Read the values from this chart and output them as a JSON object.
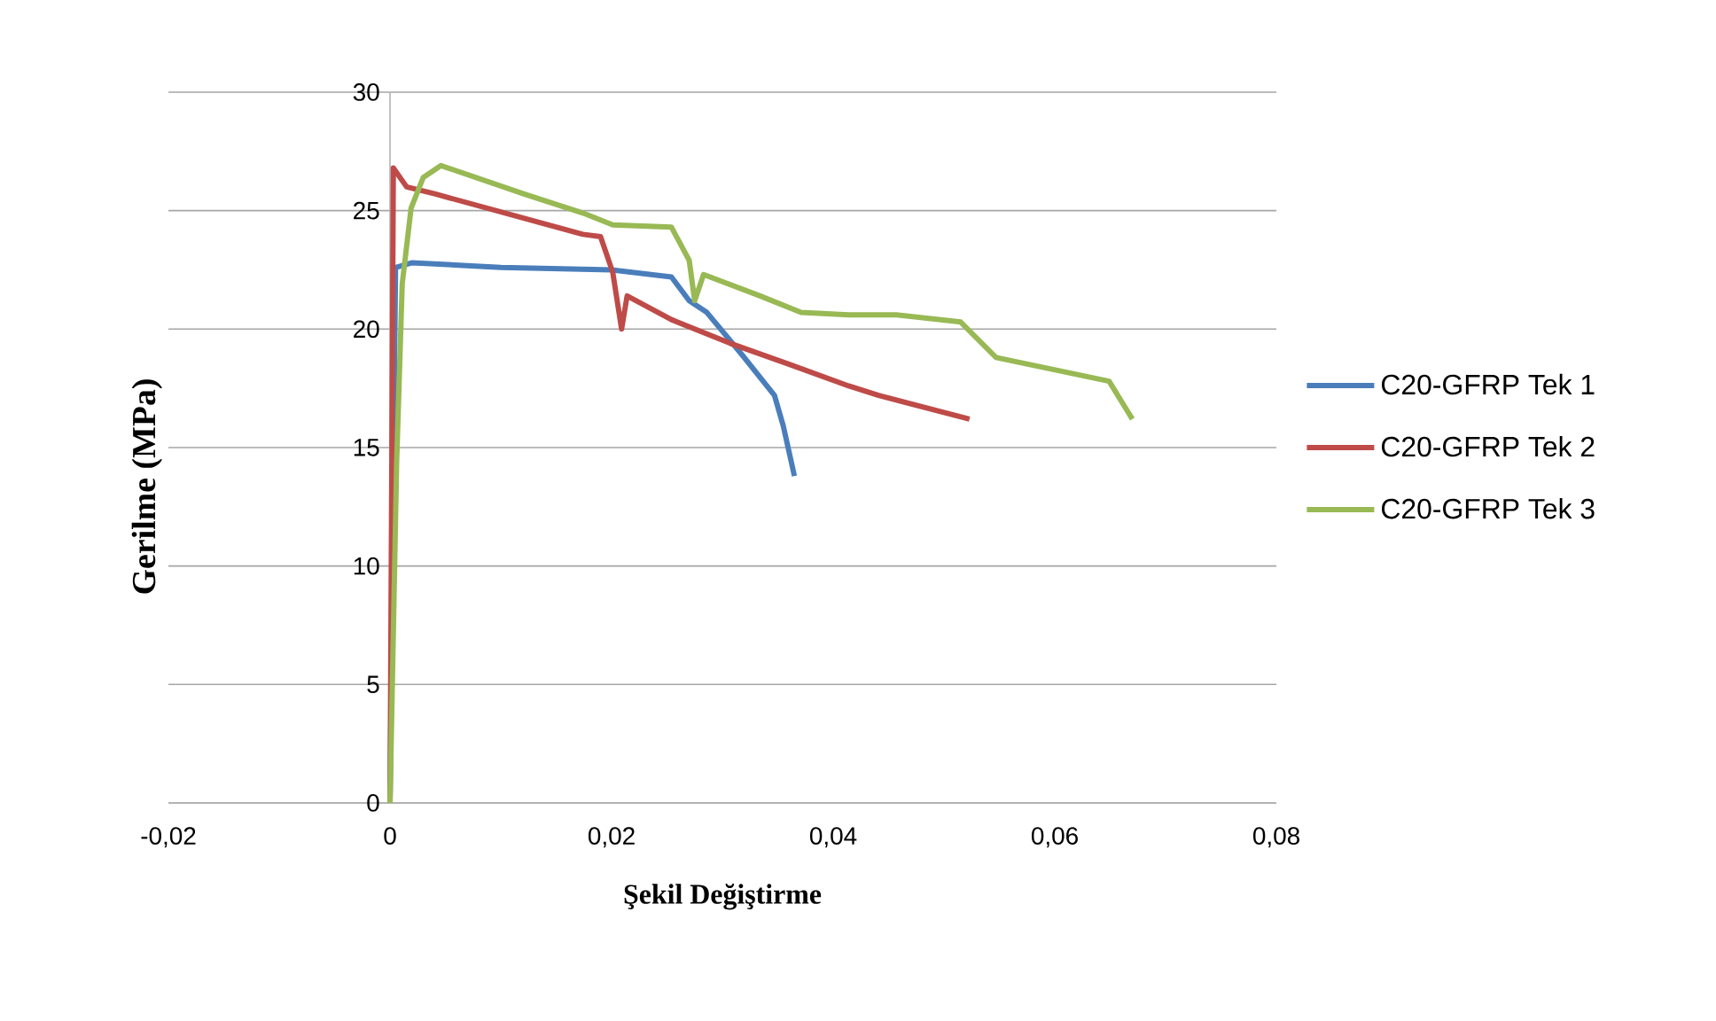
{
  "chart_data": {
    "type": "line",
    "xlabel": "Şekil Değiştirme",
    "ylabel": "Gerilme (MPa)",
    "xlim": [
      -0.02,
      0.08
    ],
    "ylim": [
      0,
      30
    ],
    "xticks": [
      {
        "value": -0.02,
        "label": "-0,02"
      },
      {
        "value": 0,
        "label": "0"
      },
      {
        "value": 0.02,
        "label": "0,02"
      },
      {
        "value": 0.04,
        "label": "0,04"
      },
      {
        "value": 0.06,
        "label": "0,06"
      },
      {
        "value": 0.08,
        "label": "0,08"
      }
    ],
    "yticks": [
      0,
      5,
      10,
      15,
      20,
      25,
      30
    ],
    "grid": "y",
    "legend": "right",
    "marker": "none",
    "line_style": "solid",
    "series": [
      {
        "name": "C20-GFRP Tek 1",
        "color": "#4a7ebb",
        "x": [
          0,
          0.0005,
          0.002,
          0.01,
          0.02,
          0.0254,
          0.027,
          0.0286,
          0.0318,
          0.0347,
          0.0355,
          0.0365
        ],
        "values": [
          0,
          22.6,
          22.8,
          22.6,
          22.5,
          22.2,
          21.2,
          20.7,
          18.9,
          17.2,
          15.9,
          13.8
        ]
      },
      {
        "name": "C20-GFRP Tek 2",
        "color": "#be4b48",
        "x": [
          0,
          0.0003,
          0.0015,
          0.0041,
          0.0174,
          0.019,
          0.0201,
          0.0209,
          0.0214,
          0.0254,
          0.0307,
          0.0361,
          0.0414,
          0.0441,
          0.0523
        ],
        "values": [
          0,
          26.8,
          26.0,
          25.7,
          24.0,
          23.9,
          22.4,
          20.0,
          21.4,
          20.4,
          19.4,
          18.5,
          17.6,
          17.2,
          16.2
        ]
      },
      {
        "name": "C20-GFRP Tek 3",
        "color": "#98b954",
        "x": [
          0,
          0.0006,
          0.0011,
          0.0019,
          0.003,
          0.0046,
          0.0121,
          0.0174,
          0.0201,
          0.0254,
          0.027,
          0.0275,
          0.0283,
          0.0334,
          0.0371,
          0.0414,
          0.0457,
          0.0515,
          0.0547,
          0.0649,
          0.067
        ],
        "values": [
          0,
          14.4,
          21.9,
          25.1,
          26.4,
          26.9,
          25.7,
          24.9,
          24.4,
          24.3,
          22.9,
          21.2,
          22.3,
          21.4,
          20.7,
          20.6,
          20.6,
          20.3,
          18.8,
          17.8,
          16.2
        ]
      }
    ]
  }
}
